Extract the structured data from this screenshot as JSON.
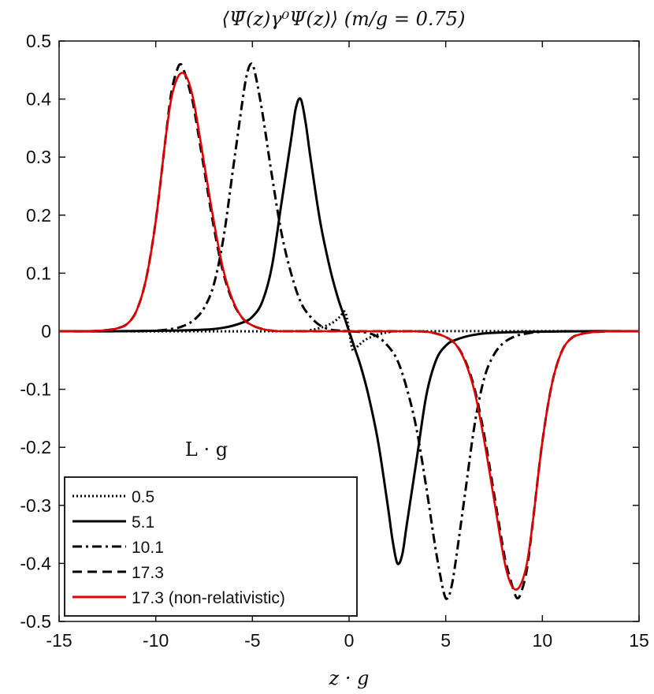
{
  "chart_data": {
    "type": "line",
    "title": "⟨Ψ̄(z)γ⁰Ψ(z)⟩ (m/g = 0.75)",
    "xlabel": "z · g",
    "ylabel": "",
    "xlim": [
      -15,
      15
    ],
    "ylim": [
      -0.5,
      0.5
    ],
    "xticks": [
      -15,
      -10,
      -5,
      0,
      5,
      10,
      15
    ],
    "xtick_labels": [
      "-15",
      "-10",
      "-5",
      "0",
      "5",
      "10",
      "15"
    ],
    "yticks": [
      0.5,
      0.4,
      0.3,
      0.2,
      0.1,
      0,
      -0.1,
      -0.2,
      -0.3,
      -0.4,
      -0.5
    ],
    "ytick_labels": [
      "0.5",
      "0.4",
      "0.3",
      "0.2",
      "0.1",
      "0",
      "-0.1",
      "-0.2",
      "-0.3",
      "-0.4",
      "-0.5"
    ],
    "grid": false,
    "legend_title": "L · g",
    "legend_position": "bottom-left",
    "series": [
      {
        "name": "0.5",
        "color": "#000000",
        "dash": "dotted",
        "x": [
          -3.5,
          -2.0,
          -1.0,
          -0.5,
          -0.2,
          0.0,
          0.2,
          0.5,
          1.0,
          2.0,
          3.5
        ],
        "y": [
          0,
          0.002,
          0.012,
          0.024,
          0.033,
          0.0,
          -0.033,
          -0.024,
          -0.012,
          -0.002,
          0
        ]
      },
      {
        "name": "5.1",
        "color": "#000000",
        "dash": "solid",
        "x": [
          -12,
          -8,
          -6.5,
          -5.5,
          -5,
          -4.5,
          -4,
          -3.5,
          -3,
          -2.75,
          -2.5,
          -2.25,
          -2,
          -1.5,
          -1,
          -0.6,
          -0.3,
          0,
          0.3,
          0.6,
          1,
          1.5,
          2,
          2.25,
          2.5,
          2.75,
          3,
          3.5,
          4,
          4.5,
          5,
          5.5,
          6.5,
          8,
          12
        ],
        "y": [
          0,
          0.002,
          0.006,
          0.015,
          0.025,
          0.05,
          0.11,
          0.22,
          0.33,
          0.385,
          0.4,
          0.36,
          0.3,
          0.19,
          0.11,
          0.06,
          0.03,
          0,
          -0.03,
          -0.06,
          -0.11,
          -0.19,
          -0.3,
          -0.36,
          -0.4,
          -0.385,
          -0.33,
          -0.22,
          -0.11,
          -0.05,
          -0.025,
          -0.015,
          -0.006,
          -0.002,
          0
        ]
      },
      {
        "name": "10.1",
        "color": "#000000",
        "dash": "dashdot",
        "x": [
          -12,
          -10,
          -9,
          -8.5,
          -8,
          -7.5,
          -7,
          -6.5,
          -6,
          -5.5,
          -5.3,
          -5.1,
          -4.9,
          -4.5,
          -4,
          -3.5,
          -3,
          -2.5,
          -2,
          -1.5,
          -1,
          -0.5,
          0,
          0.5,
          1,
          1.5,
          2,
          2.5,
          3,
          3.5,
          4,
          4.5,
          4.9,
          5.1,
          5.3,
          5.5,
          6,
          6.5,
          7,
          7.5,
          8,
          8.5,
          9,
          10,
          12
        ],
        "y": [
          0,
          0.001,
          0.005,
          0.01,
          0.02,
          0.04,
          0.08,
          0.16,
          0.28,
          0.4,
          0.44,
          0.46,
          0.45,
          0.38,
          0.27,
          0.17,
          0.1,
          0.05,
          0.025,
          0.01,
          0.003,
          0.001,
          0,
          -0.001,
          -0.003,
          -0.01,
          -0.025,
          -0.05,
          -0.1,
          -0.17,
          -0.27,
          -0.38,
          -0.45,
          -0.46,
          -0.44,
          -0.4,
          -0.28,
          -0.16,
          -0.08,
          -0.04,
          -0.02,
          -0.01,
          -0.005,
          -0.001,
          0
        ]
      },
      {
        "name": "17.3",
        "color": "#000000",
        "dash": "dashed",
        "x": [
          -13.5,
          -12.5,
          -12,
          -11.5,
          -11,
          -10.5,
          -10,
          -9.5,
          -9.2,
          -8.9,
          -8.7,
          -8.5,
          -8.2,
          -8,
          -7.5,
          -7,
          -6.5,
          -6,
          -5.5,
          -5,
          -4.5,
          -4,
          -3,
          3,
          4,
          4.5,
          5,
          5.5,
          6,
          6.5,
          7,
          7.5,
          8,
          8.2,
          8.5,
          8.7,
          8.9,
          9.2,
          9.5,
          10,
          10.5,
          11,
          11.5,
          12,
          12.5,
          13.5
        ],
        "y": [
          0,
          0.002,
          0.005,
          0.012,
          0.035,
          0.09,
          0.19,
          0.33,
          0.41,
          0.45,
          0.46,
          0.445,
          0.41,
          0.38,
          0.28,
          0.18,
          0.1,
          0.05,
          0.022,
          0.01,
          0.004,
          0.001,
          0,
          0,
          -0.001,
          -0.004,
          -0.01,
          -0.022,
          -0.05,
          -0.1,
          -0.18,
          -0.28,
          -0.38,
          -0.41,
          -0.445,
          -0.46,
          -0.45,
          -0.41,
          -0.33,
          -0.19,
          -0.09,
          -0.035,
          -0.012,
          -0.005,
          -0.002,
          0
        ]
      },
      {
        "name": "17.3 (non-relativistic)",
        "color": "#e00000",
        "dash": "solid",
        "x": [
          -13.5,
          -12.5,
          -12,
          -11.5,
          -11,
          -10.5,
          -10,
          -9.5,
          -9.2,
          -8.9,
          -8.6,
          -8.3,
          -8,
          -7.5,
          -7,
          -6.5,
          -6,
          -5.5,
          -5,
          -4.5,
          -4,
          -3,
          3,
          4,
          4.5,
          5,
          5.5,
          6,
          6.5,
          7,
          7.5,
          8,
          8.3,
          8.6,
          8.9,
          9.2,
          9.5,
          10,
          10.5,
          11,
          11.5,
          12,
          12.5,
          13.5
        ],
        "y": [
          0,
          0.002,
          0.005,
          0.012,
          0.035,
          0.09,
          0.19,
          0.33,
          0.4,
          0.435,
          0.445,
          0.43,
          0.39,
          0.29,
          0.19,
          0.105,
          0.052,
          0.022,
          0.01,
          0.004,
          0.001,
          0,
          0,
          -0.001,
          -0.004,
          -0.01,
          -0.022,
          -0.052,
          -0.105,
          -0.19,
          -0.29,
          -0.39,
          -0.43,
          -0.445,
          -0.435,
          -0.4,
          -0.33,
          -0.19,
          -0.09,
          -0.035,
          -0.012,
          -0.005,
          -0.002,
          0
        ]
      }
    ]
  }
}
